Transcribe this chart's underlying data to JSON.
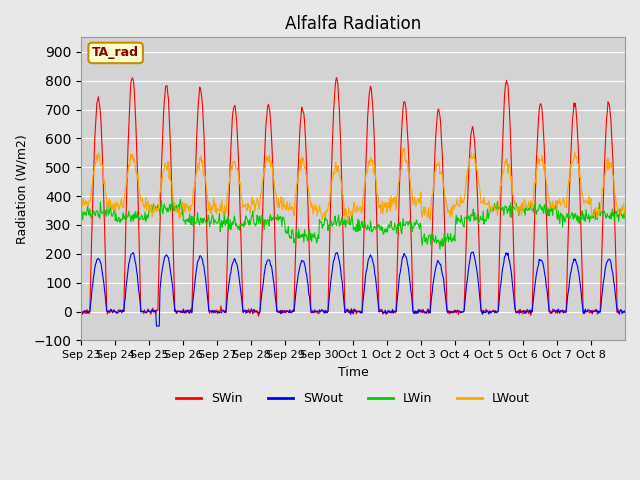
{
  "title": "Alfalfa Radiation",
  "xlabel": "Time",
  "ylabel": "Radiation (W/m2)",
  "ylim": [
    -100,
    950
  ],
  "yticks": [
    -100,
    0,
    100,
    200,
    300,
    400,
    500,
    600,
    700,
    800,
    900
  ],
  "x_tick_labels": [
    "Sep 23",
    "Sep 24",
    "Sep 25",
    "Sep 26",
    "Sep 27",
    "Sep 28",
    "Sep 29",
    "Sep 30",
    "Oct 1",
    "Oct 2",
    "Oct 3",
    "Oct 4",
    "Oct 5",
    "Oct 6",
    "Oct 7",
    "Oct 8"
  ],
  "colors": {
    "SWin": "#ff0000",
    "SWout": "#0000ff",
    "LWin": "#00cc00",
    "LWout": "#ffa500"
  },
  "legend_label": "TA_rad",
  "background_color": "#e8e8e8",
  "plot_bg_color": "#d3d3d3",
  "grid_color": "#ffffff",
  "n_days": 16,
  "pts_per_day": 48
}
